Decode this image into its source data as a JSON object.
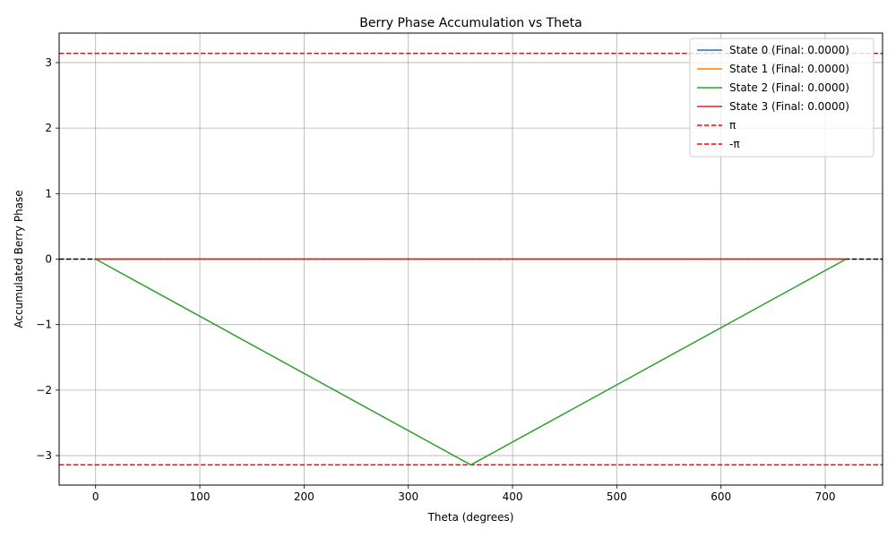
{
  "chart_data": {
    "type": "line",
    "title": "Berry Phase Accumulation vs Theta",
    "xlabel": "Theta (degrees)",
    "ylabel": "Accumulated Berry Phase",
    "xlim": [
      -35,
      755
    ],
    "ylim": [
      -3.45,
      3.45
    ],
    "xticks": [
      0,
      100,
      200,
      300,
      400,
      500,
      600,
      700
    ],
    "yticks": [
      -3,
      -2,
      -1,
      0,
      1,
      2,
      3
    ],
    "ytick_labels": [
      "−3",
      "−2",
      "−1",
      "0",
      "1",
      "2",
      "3"
    ],
    "grid": true,
    "legend_position": "upper right",
    "series": [
      {
        "name": "State 0 (Final: 0.0000)",
        "color": "#1f77b4",
        "style": "solid",
        "x": [
          0,
          360,
          720
        ],
        "y": [
          0,
          0,
          0
        ]
      },
      {
        "name": "State 1 (Final: 0.0000)",
        "color": "#ff7f0e",
        "style": "solid",
        "x": [
          0,
          360,
          720
        ],
        "y": [
          0,
          0,
          0
        ]
      },
      {
        "name": "State 2 (Final: 0.0000)",
        "color": "#2ca02c",
        "style": "solid",
        "x": [
          0,
          360,
          720
        ],
        "y": [
          0,
          -3.1416,
          0
        ]
      },
      {
        "name": "State 3 (Final: 0.0000)",
        "color": "#d62728",
        "style": "solid",
        "x": [
          0,
          360,
          720
        ],
        "y": [
          0,
          0,
          0
        ]
      }
    ],
    "reference_lines": [
      {
        "name": "π",
        "y": 3.1416,
        "color": "#ff0000",
        "style": "dashed",
        "in_legend": true
      },
      {
        "name": "-π",
        "y": -3.1416,
        "color": "#ff0000",
        "style": "dashed",
        "in_legend": true
      },
      {
        "name": "",
        "y": 0,
        "color": "#000000",
        "style": "dashed",
        "in_legend": false
      }
    ]
  }
}
